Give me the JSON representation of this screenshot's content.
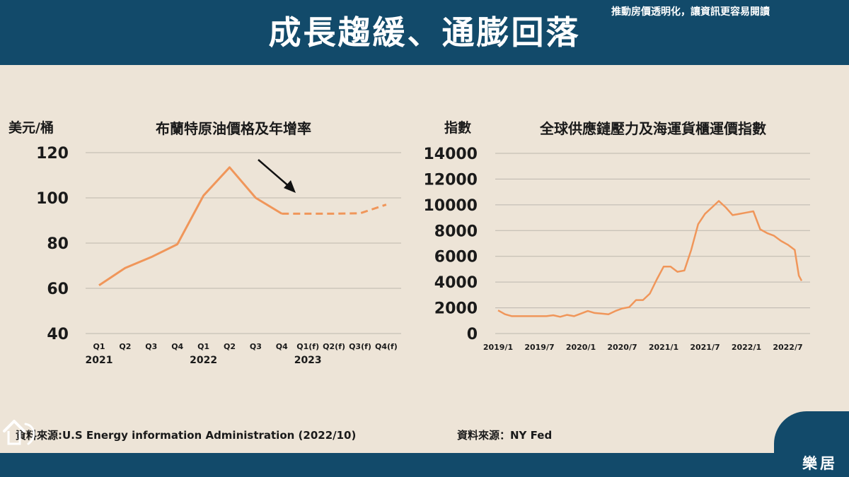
{
  "header": {
    "title": "成長趨緩、通膨回落"
  },
  "footer": {
    "slogan": "推動房價透明化，讓資訊更容易閱讀",
    "logo_text": "樂居"
  },
  "charts": {
    "left": {
      "unit": "美元/桶",
      "title": "布蘭特原油價格及年增率",
      "source": "資料來源:U.S Energy information Administration (2022/10)"
    },
    "right": {
      "unit": "指數",
      "title": "全球供應鏈壓力及海運貨櫃運價指數",
      "source": "資料來源：NY Fed"
    }
  },
  "colors": {
    "line": "#f0965a",
    "grid": "#bdb7ae",
    "header": "#124a6a",
    "background": "#ede4d7"
  },
  "chart_data": [
    {
      "type": "line",
      "title": "布蘭特原油價格及年增率",
      "ylabel": "美元/桶",
      "categories": [
        "Q1",
        "Q2",
        "Q3",
        "Q4",
        "Q1",
        "Q2",
        "Q3",
        "Q4",
        "Q1(f)",
        "Q2(f)",
        "Q3(f)",
        "Q4(f)"
      ],
      "year_labels": [
        {
          "index": 0,
          "label": "2021"
        },
        {
          "index": 4,
          "label": "2022"
        },
        {
          "index": 8,
          "label": "2023"
        }
      ],
      "yticks": [
        40,
        60,
        80,
        100,
        120
      ],
      "ylim": [
        40,
        120
      ],
      "grid": true,
      "series": [
        {
          "style": "solid",
          "values": [
            61.3,
            69,
            73.8,
            79.5,
            101,
            113.5,
            100,
            93,
            null,
            null,
            null,
            null
          ]
        },
        {
          "style": "dashed",
          "values": [
            null,
            null,
            null,
            null,
            null,
            null,
            null,
            93,
            93,
            93,
            93.2,
            97
          ]
        }
      ],
      "annotation": "arrow pointing to forecast"
    },
    {
      "type": "line",
      "title": "全球供應鏈壓力及海運貨櫃運價指數",
      "ylabel": "指數",
      "xticks": [
        "2019/1",
        "2019/7",
        "2020/1",
        "2020/7",
        "2021/1",
        "2021/7",
        "2022/1",
        "2022/7"
      ],
      "yticks": [
        0,
        2000,
        4000,
        6000,
        8000,
        10000,
        12000,
        14000
      ],
      "ylim": [
        0,
        14000
      ],
      "grid": true,
      "series": [
        {
          "x_months": [
            0,
            1,
            2,
            3,
            4,
            5,
            6,
            7,
            8,
            9,
            10,
            11,
            12,
            13,
            14,
            15,
            16,
            17,
            18,
            19,
            20,
            21,
            22,
            23,
            24,
            25,
            26,
            27,
            28,
            29,
            30,
            31,
            32,
            33,
            34,
            35,
            36,
            37,
            38,
            39,
            40,
            41,
            42,
            43,
            43.6,
            44
          ],
          "values": [
            1800,
            1500,
            1350,
            1350,
            1350,
            1350,
            1350,
            1350,
            1420,
            1300,
            1450,
            1350,
            1550,
            1750,
            1600,
            1550,
            1500,
            1750,
            1950,
            2050,
            2600,
            2600,
            3100,
            4200,
            5200,
            5200,
            4800,
            4900,
            6500,
            8500,
            9300,
            9800,
            10300,
            9800,
            9200,
            9300,
            9400,
            9500,
            8100,
            7800,
            7600,
            7200,
            6900,
            6500,
            4500,
            4100
          ]
        }
      ]
    }
  ]
}
